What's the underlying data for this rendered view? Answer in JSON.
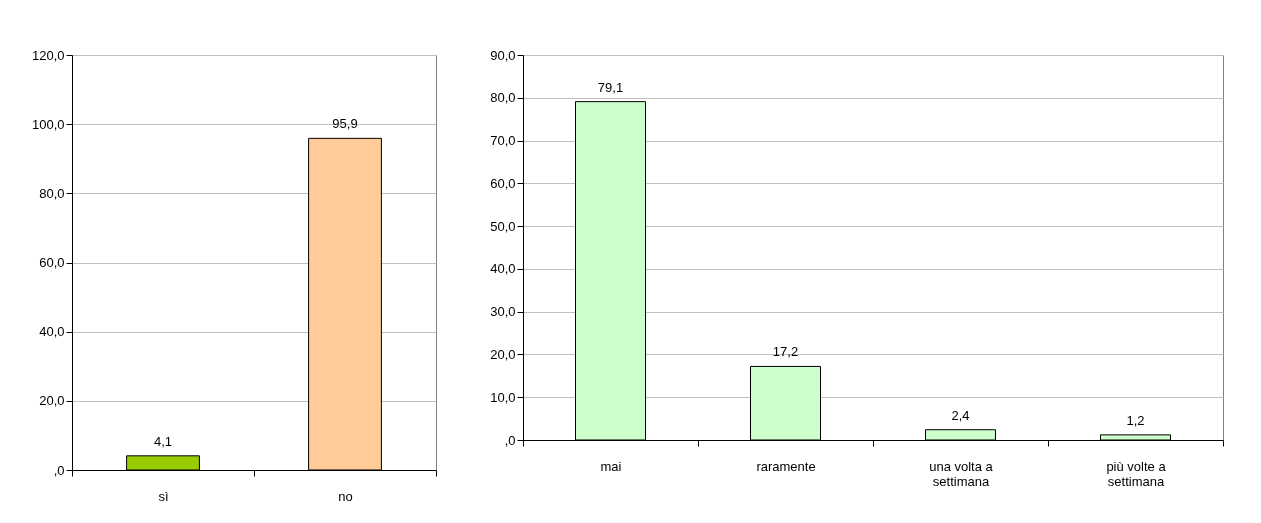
{
  "chart_data": [
    {
      "type": "bar",
      "categories": [
        "sì",
        "no"
      ],
      "values": [
        4.1,
        95.9
      ],
      "colors": [
        "#99cc00",
        "#ffcc99"
      ],
      "value_labels": [
        "4,1",
        "95,9"
      ],
      "ylim": [
        0,
        120
      ],
      "yticks": [
        {
          "value": 0,
          "label": ",0"
        },
        {
          "value": 20,
          "label": "20,0"
        },
        {
          "value": 40,
          "label": "40,0"
        },
        {
          "value": 60,
          "label": "60,0"
        },
        {
          "value": 80,
          "label": "80,0"
        },
        {
          "value": 100,
          "label": "100,0"
        },
        {
          "value": 120,
          "label": "120,0"
        }
      ],
      "grid": "y"
    },
    {
      "type": "bar",
      "categories": [
        "mai",
        "raramente",
        "una volta a settimana",
        "più volte a settimana"
      ],
      "values": [
        79.1,
        17.2,
        2.4,
        1.2
      ],
      "colors": [
        "#ccffcc",
        "#ccffcc",
        "#ccffcc",
        "#ccffcc"
      ],
      "value_labels": [
        "79,1",
        "17,2",
        "2,4",
        "1,2"
      ],
      "ylim": [
        0,
        90
      ],
      "yticks": [
        {
          "value": 0,
          "label": ",0"
        },
        {
          "value": 10,
          "label": "10,0"
        },
        {
          "value": 20,
          "label": "20,0"
        },
        {
          "value": 30,
          "label": "30,0"
        },
        {
          "value": 40,
          "label": "40,0"
        },
        {
          "value": 50,
          "label": "50,0"
        },
        {
          "value": 60,
          "label": "60,0"
        },
        {
          "value": 70,
          "label": "70,0"
        },
        {
          "value": 80,
          "label": "80,0"
        },
        {
          "value": 90,
          "label": "90,0"
        }
      ],
      "grid": "y"
    }
  ]
}
